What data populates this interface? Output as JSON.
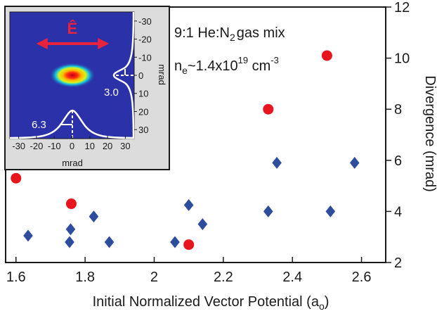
{
  "chart_data": {
    "type": "scatter",
    "xlabel": "Initial Normalized Vector Potential (a",
    "xlabel_sub": "o",
    "xlabel_suffix": ")",
    "ylabel": "Divergence (mrad)",
    "xlim": [
      1.57,
      2.67
    ],
    "ylim": [
      2,
      12
    ],
    "xticks": [
      1.6,
      1.8,
      2.0,
      2.2,
      2.4,
      2.6
    ],
    "xtick_labels": [
      "1.6",
      "1.8",
      "2",
      "2.2",
      "2.4",
      "2.6"
    ],
    "yticks": [
      2,
      4,
      6,
      8,
      10,
      12
    ],
    "ytick_labels": [
      "2",
      "4",
      "6",
      "8",
      "10",
      "12"
    ],
    "y_axis_side": "right",
    "series": [
      {
        "marker": "circle",
        "color": "#e8141e",
        "points": [
          {
            "x": 1.6,
            "y": 5.3
          },
          {
            "x": 1.76,
            "y": 4.3
          },
          {
            "x": 2.1,
            "y": 2.7
          },
          {
            "x": 2.33,
            "y": 8.0
          },
          {
            "x": 2.5,
            "y": 10.1
          }
        ]
      },
      {
        "marker": "diamond",
        "color": "#2e4d9c",
        "points": [
          {
            "x": 1.635,
            "y": 3.05
          },
          {
            "x": 1.755,
            "y": 2.8
          },
          {
            "x": 1.758,
            "y": 3.3
          },
          {
            "x": 1.825,
            "y": 3.8
          },
          {
            "x": 1.87,
            "y": 2.8
          },
          {
            "x": 2.06,
            "y": 2.8
          },
          {
            "x": 2.1,
            "y": 4.25
          },
          {
            "x": 2.14,
            "y": 3.5
          },
          {
            "x": 2.33,
            "y": 4.0
          },
          {
            "x": 2.355,
            "y": 5.9
          },
          {
            "x": 2.51,
            "y": 4.0
          },
          {
            "x": 2.58,
            "y": 5.9
          }
        ]
      }
    ],
    "annotations": {
      "line1_main": "9:1 He:N",
      "line1_sub": "2",
      "line1_tail": "gas mix",
      "line2_main": "n",
      "line2_sub": "e",
      "line2_mid": "~1.4x10",
      "line2_sup": "19",
      "line2_unit": " cm",
      "line2_unit_sup": "-3"
    },
    "inset": {
      "type": "heatmap",
      "xlabel": "mrad",
      "ylabel": "mrad",
      "xticks": [
        -30,
        -20,
        -10,
        0,
        10,
        20,
        30
      ],
      "xtick_labels": [
        "-30",
        "-20",
        "-10",
        "0",
        "10",
        "20",
        "30"
      ],
      "yticks": [
        -30,
        -20,
        -10,
        0,
        10,
        20,
        30
      ],
      "ytick_labels": [
        "-30",
        "-20",
        "-10",
        "0",
        "10",
        "20",
        "30"
      ],
      "field_label": "Ê",
      "horizontal_fwhm": "6.3",
      "vertical_fwhm": "3.0",
      "background_color": "#2b31a8"
    }
  }
}
